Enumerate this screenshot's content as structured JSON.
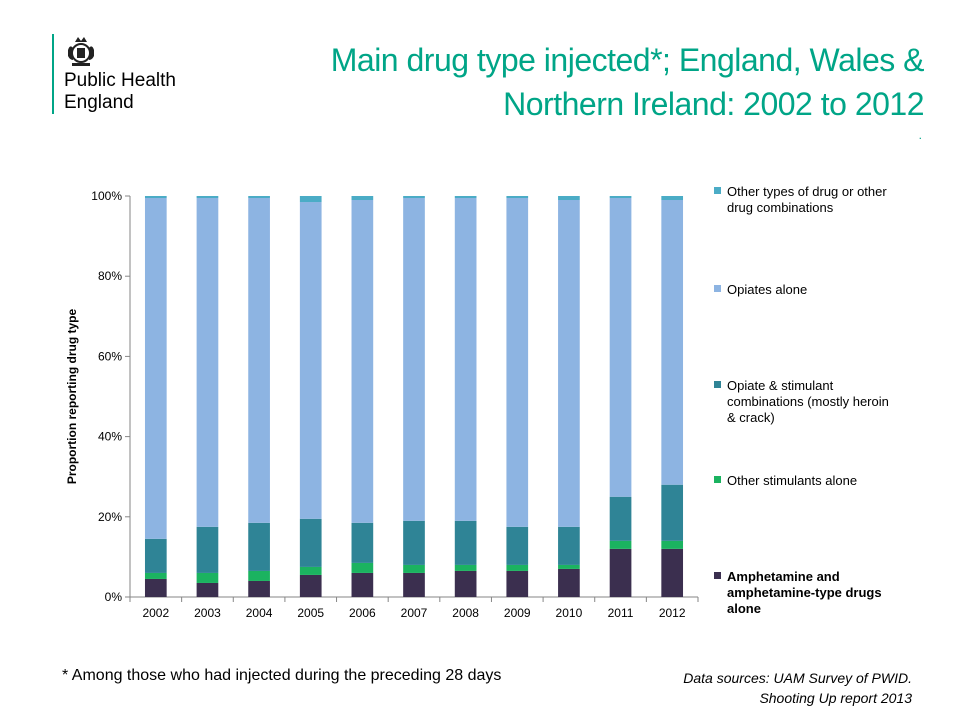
{
  "brand": {
    "name_line1": "Public Health",
    "name_line2": "England",
    "accent_color": "#00a587",
    "crest_icon": "royal-coat-of-arms-icon"
  },
  "slide": {
    "title_line1": "Main drug type injected*; England, Wales &",
    "title_line2": "Northern Ireland: 2002 to 2012",
    "title_dot": ".",
    "footnote": "*  Among those who had injected during the preceding 28 days",
    "sources_line1": "Data sources:  UAM Survey of PWID.",
    "sources_line2": "Shooting Up report 2013"
  },
  "chart_data": {
    "type": "bar",
    "stacked": true,
    "percent_stacked": true,
    "categories": [
      "2002",
      "2003",
      "2004",
      "2005",
      "2006",
      "2007",
      "2008",
      "2009",
      "2010",
      "2011",
      "2012"
    ],
    "ylabel": "Proportion reporting drug type",
    "xlabel": "",
    "ylim": [
      0,
      100
    ],
    "yticks": [
      "0%",
      "20%",
      "40%",
      "60%",
      "80%",
      "100%"
    ],
    "grid": false,
    "legend_position": "right",
    "series": [
      {
        "name": "Amphetamine and amphetamine-type drugs alone",
        "legend_lines": [
          "Amphetamine and",
          "amphetamine-type drugs",
          "alone"
        ],
        "legend_bold": true,
        "color": "#3b2f4f",
        "values": [
          4.5,
          3.5,
          4,
          5.5,
          6,
          6,
          6.5,
          6.5,
          7,
          12,
          12
        ]
      },
      {
        "name": "Other stimulants alone",
        "legend_lines": [
          "Other stimulants alone"
        ],
        "legend_bold": false,
        "color": "#1bb360",
        "values": [
          1.5,
          2.5,
          2.5,
          2,
          2.5,
          2,
          1.5,
          1.5,
          1,
          2,
          2
        ]
      },
      {
        "name": "Opiate & stimulant combinations (mostly heroin & crack)",
        "legend_lines": [
          "Opiate & stimulant",
          "combinations (mostly heroin",
          "& crack)"
        ],
        "legend_bold": false,
        "color": "#2f8496",
        "values": [
          8.5,
          11.5,
          12,
          12,
          10,
          11,
          11,
          9.5,
          9.5,
          11,
          14
        ]
      },
      {
        "name": "Opiates alone",
        "legend_lines": [
          "Opiates alone"
        ],
        "legend_bold": false,
        "color": "#8db4e2",
        "values": [
          85,
          82,
          81,
          79,
          80.5,
          80.5,
          80.5,
          82,
          81.5,
          74.5,
          71
        ]
      },
      {
        "name": "Other types of drug or other drug combinations",
        "legend_lines": [
          "Other types of drug or other",
          "drug combinations"
        ],
        "legend_bold": false,
        "color": "#4bacc6",
        "values": [
          0.5,
          0.5,
          0.5,
          1.5,
          1,
          0.5,
          0.5,
          0.5,
          1,
          0.5,
          1
        ]
      }
    ]
  }
}
